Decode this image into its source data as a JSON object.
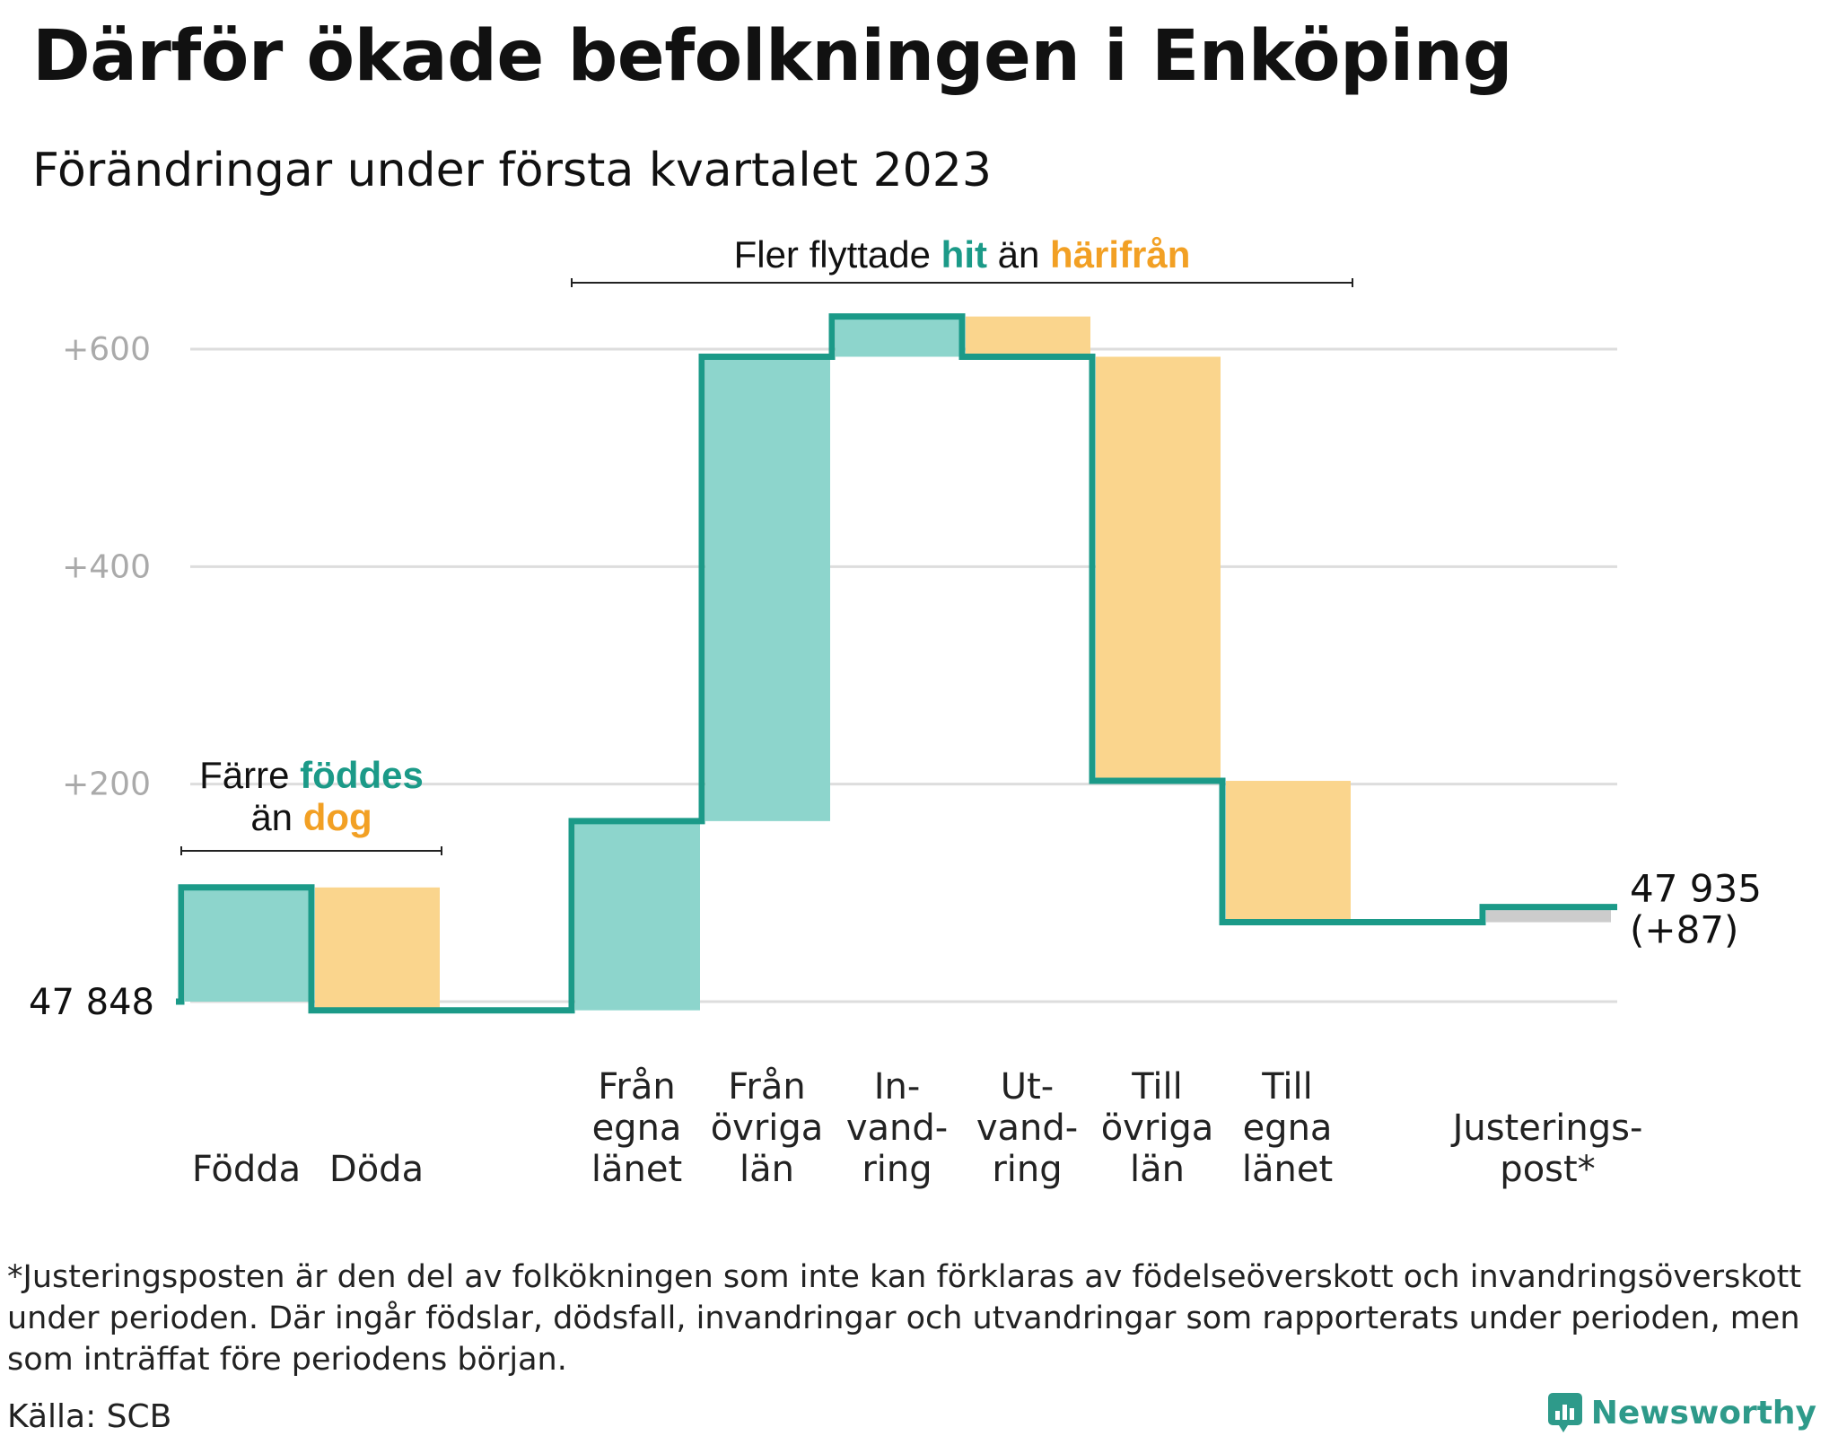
{
  "title": "Därför ökade befolkningen i Enköping",
  "subtitle": "Förändringar under första kvartalet 2023",
  "colors": {
    "line": "#1b9a88",
    "inflow": "#8dd5cc",
    "outflow": "#fad58d",
    "adjustment": "#cccccc",
    "accent_green": "#1b9a88",
    "accent_orange": "#f2a024",
    "grid": "#dddddd",
    "tick": "#aaaaaa"
  },
  "chart_data": {
    "type": "waterfall",
    "start_value": 47848,
    "start_label": "47 848",
    "end_value": 47935,
    "end_label": "47 935",
    "end_change_label": "(+87)",
    "y_ticks": [
      {
        "value": 200,
        "label": "+200"
      },
      {
        "value": 400,
        "label": "+400"
      },
      {
        "value": 600,
        "label": "+600"
      }
    ],
    "ylim": [
      0,
      640
    ],
    "grid": true,
    "steps": [
      {
        "label": [
          "Födda"
        ],
        "change": 105,
        "kind": "inflow"
      },
      {
        "label": [
          "Döda"
        ],
        "change": -113,
        "kind": "outflow"
      },
      {
        "label": [],
        "change": 0,
        "kind": "gap"
      },
      {
        "label": [
          "Från",
          "egna",
          "länet"
        ],
        "change": 174,
        "kind": "inflow"
      },
      {
        "label": [
          "Från",
          "övriga",
          "län"
        ],
        "change": 427,
        "kind": "inflow"
      },
      {
        "label": [
          "In-",
          "vand-",
          "ring"
        ],
        "change": 37,
        "kind": "inflow"
      },
      {
        "label": [
          "Ut-",
          "vand-",
          "ring"
        ],
        "change": -37,
        "kind": "outflow"
      },
      {
        "label": [
          "Till",
          "övriga",
          "län"
        ],
        "change": -390,
        "kind": "outflow"
      },
      {
        "label": [
          "Till",
          "egna",
          "länet"
        ],
        "change": -130,
        "kind": "outflow"
      },
      {
        "label": [],
        "change": 0,
        "kind": "gap"
      },
      {
        "label": [
          "Justerings-",
          "post*"
        ],
        "change": 14,
        "kind": "adjustment"
      }
    ],
    "annotations": [
      {
        "parts": [
          {
            "text": "Färre ",
            "kind": "plain"
          },
          {
            "text": "föddes",
            "kind": "green"
          }
        ],
        "parts2": [
          {
            "text": "än ",
            "kind": "plain"
          },
          {
            "text": "dog",
            "kind": "orange"
          }
        ],
        "from_step": 0,
        "to_step": 1
      },
      {
        "parts": [
          {
            "text": "Fler flyttade ",
            "kind": "plain"
          },
          {
            "text": "hit",
            "kind": "green"
          },
          {
            "text": " än ",
            "kind": "plain"
          },
          {
            "text": "härifrån",
            "kind": "orange"
          }
        ],
        "from_step": 3,
        "to_step": 8
      }
    ]
  },
  "footnote": "*Justeringsposten är den del av folkökningen som inte kan förklaras av födelseöverskott och invandringsöverskott under perioden. Där ingår födslar, dödsfall, invandringar och utvandringar som rapporterats under perioden, men som inträffat före periodens början.",
  "source": "Källa: SCB",
  "brand": "Newsworthy"
}
